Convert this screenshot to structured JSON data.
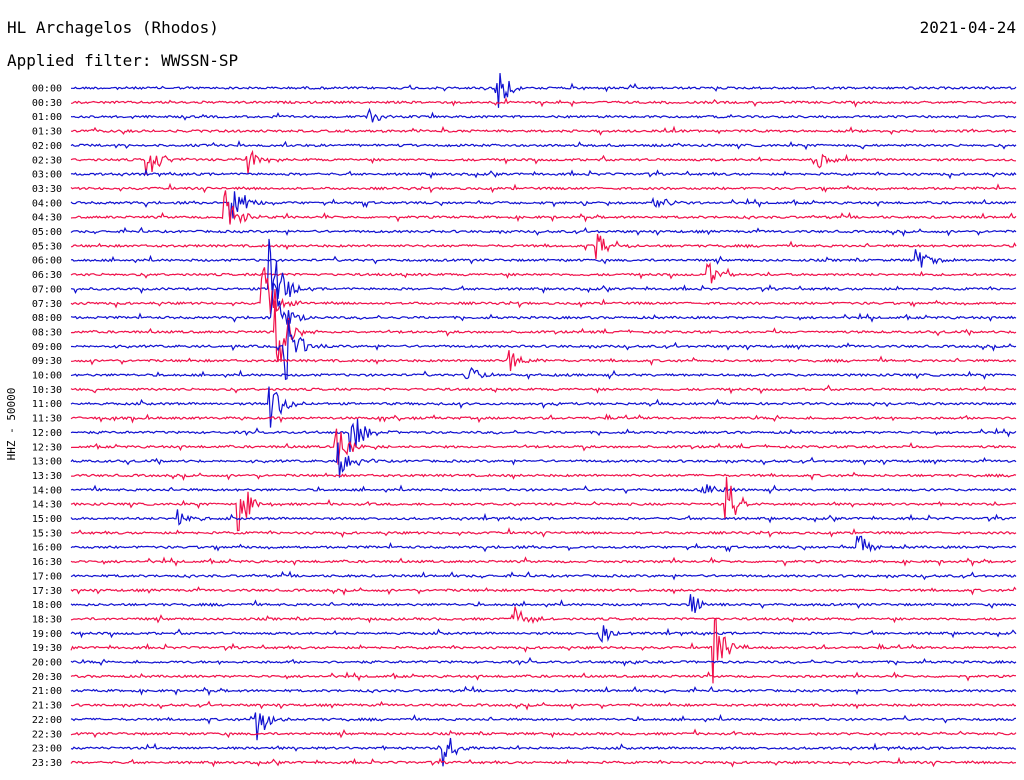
{
  "header": {
    "station": "HL Archagelos (Rhodos)",
    "filter": "Applied filter: WWSSN-SP",
    "date": "2021-04-24"
  },
  "chart_data": {
    "type": "line",
    "title": "HL Archagelos (Rhodos)",
    "subtitle": "Applied filter: WWSSN-SP",
    "ylabel": "HHZ - 50000",
    "xlabel": "",
    "row_labels": [
      "00:00",
      "00:30",
      "01:00",
      "01:30",
      "02:00",
      "02:30",
      "03:00",
      "03:30",
      "04:00",
      "04:30",
      "05:00",
      "05:30",
      "06:00",
      "06:30",
      "07:00",
      "07:30",
      "08:00",
      "08:30",
      "09:00",
      "09:30",
      "10:00",
      "10:30",
      "11:00",
      "11:30",
      "12:00",
      "12:30",
      "13:00",
      "13:30",
      "14:00",
      "14:30",
      "15:00",
      "15:30",
      "16:00",
      "16:30",
      "17:00",
      "17:30",
      "18:00",
      "18:30",
      "19:00",
      "19:30",
      "20:00",
      "20:30",
      "21:00",
      "21:30",
      "22:00",
      "22:30",
      "23:00",
      "23:30"
    ],
    "row_colors": [
      "#1010d0",
      "#f0104a"
    ],
    "x_range": [
      0,
      30
    ],
    "x_unit": "minutes",
    "grid": false,
    "legend": "none",
    "events": [
      {
        "row": 0,
        "x": 13.5,
        "amp": 28
      },
      {
        "row": 2,
        "x": 9.4,
        "amp": 10
      },
      {
        "row": 5,
        "x": 2.4,
        "amp": 22
      },
      {
        "row": 5,
        "x": 5.6,
        "amp": 16
      },
      {
        "row": 5,
        "x": 23.6,
        "amp": 12
      },
      {
        "row": 8,
        "x": 5.1,
        "amp": 30
      },
      {
        "row": 8,
        "x": 18.5,
        "amp": 12
      },
      {
        "row": 9,
        "x": 4.9,
        "amp": 34
      },
      {
        "row": 11,
        "x": 16.7,
        "amp": 16
      },
      {
        "row": 12,
        "x": 26.8,
        "amp": 16
      },
      {
        "row": 13,
        "x": 20.2,
        "amp": 14
      },
      {
        "row": 14,
        "x": 6.3,
        "amp": 60
      },
      {
        "row": 15,
        "x": 6.1,
        "amp": 40
      },
      {
        "row": 16,
        "x": 6.4,
        "amp": 45
      },
      {
        "row": 17,
        "x": 6.5,
        "amp": 55
      },
      {
        "row": 18,
        "x": 6.8,
        "amp": 38
      },
      {
        "row": 19,
        "x": 13.9,
        "amp": 14
      },
      {
        "row": 20,
        "x": 12.6,
        "amp": 14
      },
      {
        "row": 22,
        "x": 6.3,
        "amp": 30
      },
      {
        "row": 24,
        "x": 8.9,
        "amp": 24
      },
      {
        "row": 25,
        "x": 8.4,
        "amp": 28
      },
      {
        "row": 26,
        "x": 8.5,
        "amp": 20
      },
      {
        "row": 28,
        "x": 20.0,
        "amp": 12
      },
      {
        "row": 29,
        "x": 5.3,
        "amp": 36
      },
      {
        "row": 29,
        "x": 20.8,
        "amp": 28
      },
      {
        "row": 30,
        "x": 3.4,
        "amp": 14
      },
      {
        "row": 32,
        "x": 24.9,
        "amp": 20
      },
      {
        "row": 36,
        "x": 19.7,
        "amp": 12
      },
      {
        "row": 37,
        "x": 14.1,
        "amp": 16
      },
      {
        "row": 38,
        "x": 16.8,
        "amp": 12
      },
      {
        "row": 39,
        "x": 20.4,
        "amp": 36
      },
      {
        "row": 44,
        "x": 5.9,
        "amp": 22
      },
      {
        "row": 46,
        "x": 11.7,
        "amp": 30
      }
    ]
  }
}
